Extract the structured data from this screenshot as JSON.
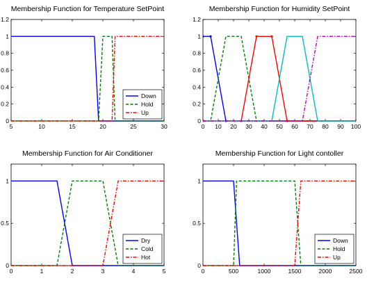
{
  "chart_data": [
    {
      "type": "line",
      "title": "Membership Function for Temperature SetPoint",
      "xlabel": "",
      "ylabel": "",
      "xlim": [
        5,
        30
      ],
      "ylim": [
        0,
        1.2
      ],
      "xticks": [
        5,
        10,
        15,
        20,
        25,
        30
      ],
      "yticks": [
        0,
        0.2,
        0.4,
        0.6,
        0.8,
        1,
        1.2
      ],
      "legend_position": "bottom-right",
      "series": [
        {
          "name": "Down",
          "color": "#0000ff",
          "dash": "solid",
          "x": [
            5,
            18.6,
            19.3,
            30
          ],
          "y": [
            1,
            1,
            0,
            0
          ]
        },
        {
          "name": "Hold",
          "color": "#008000",
          "dash": "dashed",
          "x": [
            5,
            19.3,
            20,
            21.5,
            22,
            30
          ],
          "y": [
            0,
            0,
            1,
            1,
            0,
            0
          ]
        },
        {
          "name": "Up",
          "color": "#ff0000",
          "dash": "dashdot",
          "x": [
            5,
            21.5,
            22,
            30
          ],
          "y": [
            0,
            0,
            1,
            1
          ]
        }
      ]
    },
    {
      "type": "line",
      "title": "Membership Function for Humidity SetPoint",
      "xlabel": "",
      "ylabel": "",
      "xlim": [
        0,
        100
      ],
      "ylim": [
        0,
        1.2
      ],
      "xticks": [
        0,
        10,
        20,
        30,
        40,
        50,
        60,
        70,
        80,
        90,
        100
      ],
      "yticks": [
        0,
        0.2,
        0.4,
        0.6,
        0.8,
        1,
        1.2
      ],
      "legend_position": "none",
      "series": [
        {
          "name": "",
          "color": "#0000ff",
          "dash": "solid",
          "x": [
            0,
            5,
            15,
            100
          ],
          "y": [
            1,
            1,
            0,
            0
          ],
          "markers": true
        },
        {
          "name": "",
          "color": "#008000",
          "dash": "dashed",
          "x": [
            0,
            5,
            15,
            25,
            35,
            100
          ],
          "y": [
            0,
            0,
            1,
            1,
            0,
            0
          ]
        },
        {
          "name": "",
          "color": "#ff0000",
          "dash": "solid",
          "x": [
            0,
            25,
            35,
            45,
            55,
            100
          ],
          "y": [
            0,
            0,
            1,
            1,
            0,
            0
          ],
          "markers": true
        },
        {
          "name": "",
          "color": "#00bfbf",
          "dash": "solid",
          "x": [
            0,
            45,
            55,
            65,
            75,
            100
          ],
          "y": [
            0,
            0,
            1,
            1,
            0,
            0
          ]
        },
        {
          "name": "",
          "color": "#bf00bf",
          "dash": "dashdot",
          "x": [
            0,
            65,
            75,
            100
          ],
          "y": [
            0,
            0,
            1,
            1
          ]
        }
      ]
    },
    {
      "type": "line",
      "title": "Membership Function for Air Conditioner",
      "xlabel": "",
      "ylabel": "",
      "xlim": [
        0,
        5
      ],
      "ylim": [
        0,
        1.2
      ],
      "xticks": [
        0,
        1,
        2,
        3,
        4,
        5
      ],
      "yticks": [
        0,
        0.5,
        1
      ],
      "legend_position": "bottom-right",
      "series": [
        {
          "name": "Dry",
          "color": "#0000ff",
          "dash": "solid",
          "x": [
            0,
            1.5,
            2,
            5
          ],
          "y": [
            1,
            1,
            0,
            0
          ]
        },
        {
          "name": "Cold",
          "color": "#008000",
          "dash": "dashed",
          "x": [
            0,
            1.5,
            2,
            3,
            3.5,
            5
          ],
          "y": [
            0,
            0,
            1,
            1,
            0,
            0
          ]
        },
        {
          "name": "Hot",
          "color": "#ff0000",
          "dash": "dashdot",
          "x": [
            0,
            3,
            3.5,
            5
          ],
          "y": [
            0,
            0,
            1,
            1
          ]
        }
      ]
    },
    {
      "type": "line",
      "title": "Membership Function for Light contoller",
      "xlabel": "",
      "ylabel": "",
      "xlim": [
        0,
        2500
      ],
      "ylim": [
        0,
        1.2
      ],
      "xticks": [
        0,
        500,
        1000,
        1500,
        2000,
        2500
      ],
      "yticks": [
        0,
        0.5,
        1
      ],
      "legend_position": "bottom-right",
      "series": [
        {
          "name": "Down",
          "color": "#0000ff",
          "dash": "solid",
          "x": [
            0,
            500,
            600,
            2500
          ],
          "y": [
            1,
            1,
            0,
            0
          ]
        },
        {
          "name": "Hold",
          "color": "#008000",
          "dash": "dashed",
          "x": [
            0,
            500,
            550,
            1500,
            1600,
            2500
          ],
          "y": [
            0,
            0,
            1,
            1,
            0,
            0
          ]
        },
        {
          "name": "Up",
          "color": "#ff0000",
          "dash": "dashdot",
          "x": [
            0,
            1500,
            1600,
            2500
          ],
          "y": [
            0,
            0,
            1,
            1
          ]
        }
      ]
    }
  ]
}
